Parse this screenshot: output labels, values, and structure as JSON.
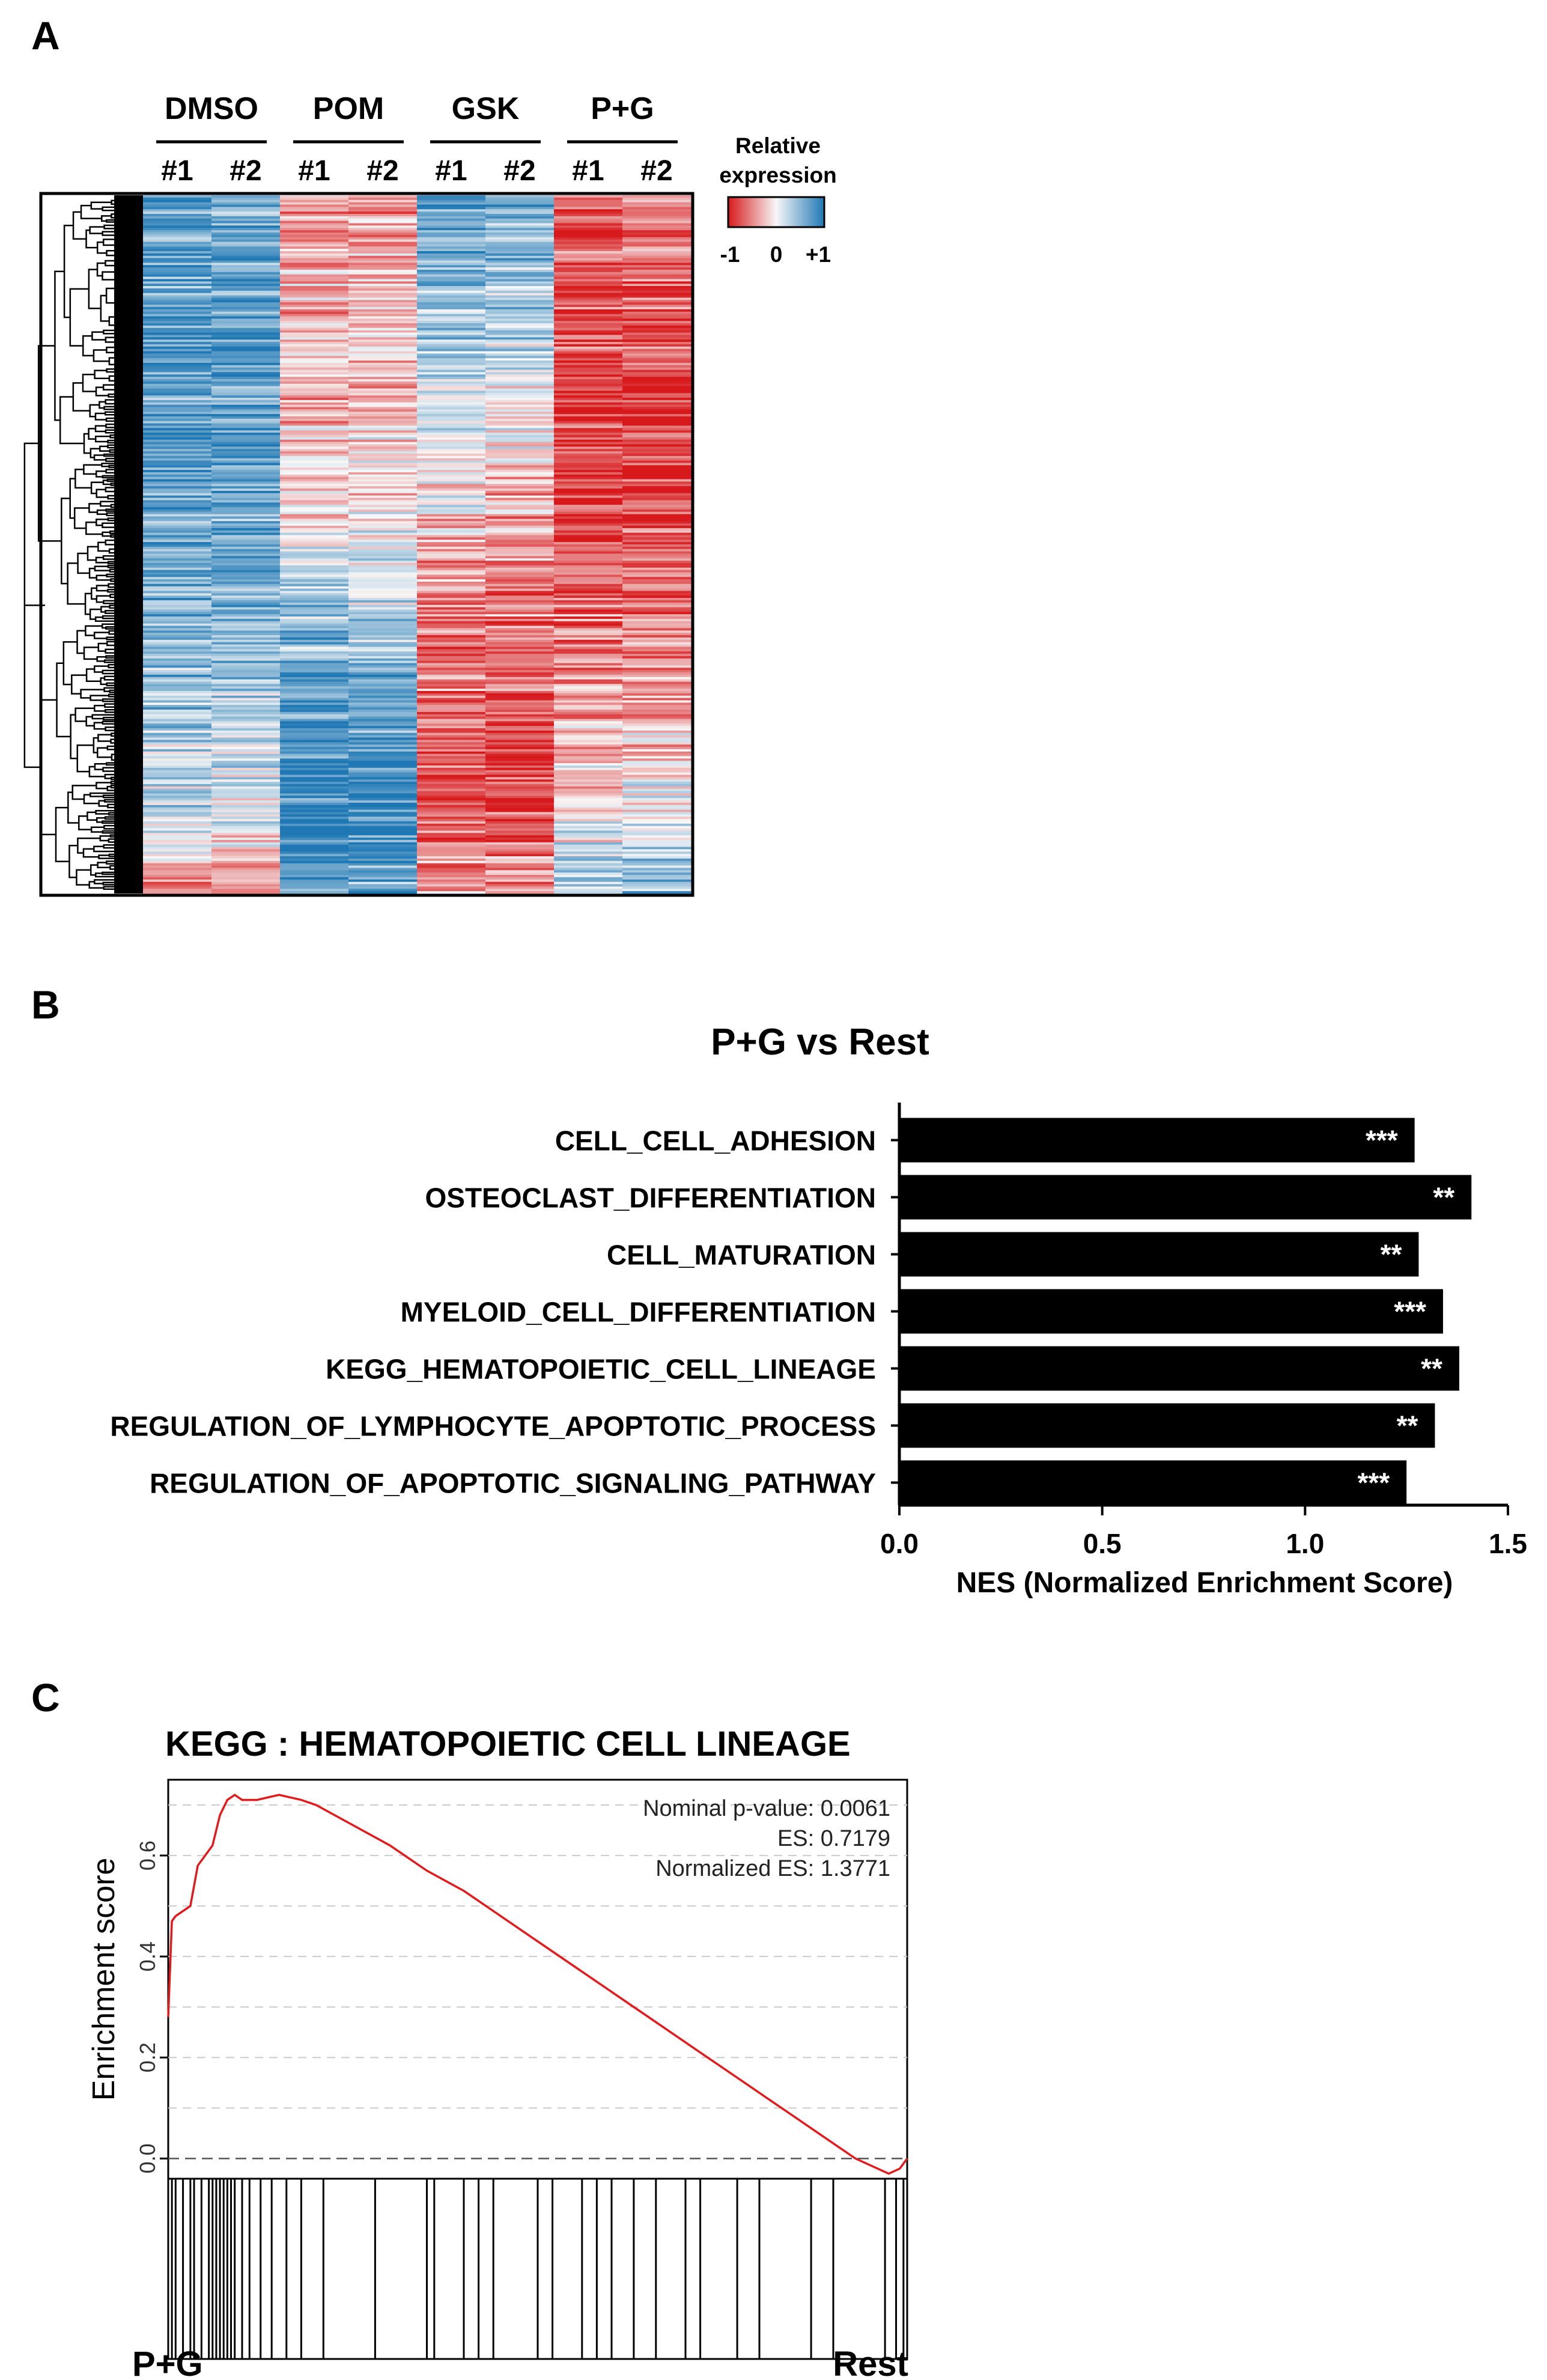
{
  "panels": {
    "a": "A",
    "b": "B",
    "c": "C"
  },
  "colors": {
    "red": "#d7191c",
    "white": "#f7f7f7",
    "blue": "#1f78b4",
    "bar": "#000000",
    "es_line": "#e31a1c"
  },
  "chart_data": [
    {
      "type": "heatmap",
      "groups": [
        {
          "name": "DMSO",
          "replicates": [
            "#1",
            "#2"
          ]
        },
        {
          "name": "POM",
          "replicates": [
            "#1",
            "#2"
          ]
        },
        {
          "name": "GSK",
          "replicates": [
            "#1",
            "#2"
          ]
        },
        {
          "name": "P+G",
          "replicates": [
            "#1",
            "#2"
          ]
        }
      ],
      "legend": {
        "title_line1": "Relative",
        "title_line2": "expression",
        "min_label": "-1",
        "mid_label": "0",
        "max_label": "+1",
        "range": [
          -1,
          1
        ]
      },
      "column_profiles": [
        [
          0.6,
          0.7,
          0.8,
          0.75,
          0.7,
          0.6,
          0.55,
          0.4,
          0.2,
          -0.6
        ],
        [
          0.5,
          0.65,
          0.75,
          0.8,
          0.7,
          0.65,
          0.5,
          0.3,
          0.1,
          -0.5
        ],
        [
          -0.6,
          -0.4,
          -0.2,
          -0.3,
          -0.1,
          0.3,
          0.6,
          0.8,
          0.9,
          0.7
        ],
        [
          -0.5,
          -0.35,
          -0.25,
          -0.2,
          -0.1,
          0.2,
          0.5,
          0.7,
          0.85,
          0.6
        ],
        [
          0.7,
          0.5,
          0.3,
          0.1,
          -0.1,
          -0.4,
          -0.6,
          -0.7,
          -0.8,
          -0.3
        ],
        [
          0.6,
          0.4,
          0.2,
          0.0,
          -0.3,
          -0.5,
          -0.65,
          -0.75,
          -0.85,
          -0.4
        ],
        [
          -0.7,
          -0.75,
          -0.8,
          -0.85,
          -0.8,
          -0.7,
          -0.5,
          -0.3,
          -0.1,
          0.4
        ],
        [
          -0.65,
          -0.7,
          -0.8,
          -0.9,
          -0.8,
          -0.6,
          -0.45,
          -0.25,
          0.0,
          0.5
        ]
      ]
    },
    {
      "type": "bar",
      "orientation": "horizontal",
      "title": "P+G vs Rest",
      "xlabel": "NES (Normalized Enrichment Score)",
      "xlim": [
        0.0,
        1.5
      ],
      "xticks": [
        "0.0",
        "0.5",
        "1.0",
        "1.5"
      ],
      "categories": [
        "CELL_CELL_ADHESION",
        "OSTEOCLAST_DIFFERENTIATION",
        "CELL_MATURATION",
        "MYELOID_CELL_DIFFERENTIATION",
        "KEGG_HEMATOPOIETIC_CELL_LINEAGE",
        "REGULATION_OF_LYMPHOCYTE_APOPTOTIC_PROCESS",
        "REGULATION_OF_APOPTOTIC_SIGNALING_PATHWAY"
      ],
      "values": [
        1.27,
        1.41,
        1.28,
        1.34,
        1.38,
        1.32,
        1.25
      ],
      "significance": [
        "***",
        "**",
        "**",
        "***",
        "**",
        "**",
        "***"
      ]
    },
    {
      "type": "line",
      "title": "KEGG : HEMATOPOIETIC CELL LINEAGE",
      "ylabel": "Enrichment score",
      "ylim": [
        -0.04,
        0.75
      ],
      "yticks": [
        "0.0",
        "0.2",
        "0.4",
        "0.6"
      ],
      "annotations": {
        "pvalue": "Nominal p-value: 0.0061",
        "es": "ES: 0.7179",
        "nes": "Normalized ES: 1.3771"
      },
      "x_left_label": "P+G",
      "x_right_label": "Rest",
      "series": [
        {
          "name": "running enrichment score",
          "x": [
            0,
            0.005,
            0.01,
            0.02,
            0.03,
            0.04,
            0.05,
            0.06,
            0.07,
            0.08,
            0.09,
            0.1,
            0.12,
            0.15,
            0.18,
            0.2,
            0.25,
            0.3,
            0.35,
            0.4,
            0.45,
            0.5,
            0.55,
            0.6,
            0.65,
            0.7,
            0.75,
            0.8,
            0.85,
            0.9,
            0.93,
            0.96,
            0.975,
            0.99,
            1.0
          ],
          "y": [
            0.28,
            0.47,
            0.48,
            0.49,
            0.5,
            0.58,
            0.6,
            0.62,
            0.68,
            0.71,
            0.72,
            0.71,
            0.71,
            0.72,
            0.71,
            0.7,
            0.66,
            0.62,
            0.57,
            0.53,
            0.48,
            0.43,
            0.38,
            0.33,
            0.28,
            0.23,
            0.18,
            0.13,
            0.08,
            0.03,
            0.0,
            -0.02,
            -0.03,
            -0.02,
            0.0
          ]
        }
      ],
      "hit_positions": [
        0.005,
        0.01,
        0.02,
        0.03,
        0.035,
        0.045,
        0.055,
        0.06,
        0.065,
        0.07,
        0.075,
        0.08,
        0.085,
        0.09,
        0.1,
        0.11,
        0.125,
        0.14,
        0.16,
        0.18,
        0.21,
        0.28,
        0.35,
        0.36,
        0.4,
        0.42,
        0.44,
        0.5,
        0.52,
        0.56,
        0.58,
        0.6,
        0.63,
        0.66,
        0.7,
        0.72,
        0.77,
        0.8,
        0.87,
        0.9,
        0.97,
        0.985,
        0.995
      ]
    }
  ]
}
